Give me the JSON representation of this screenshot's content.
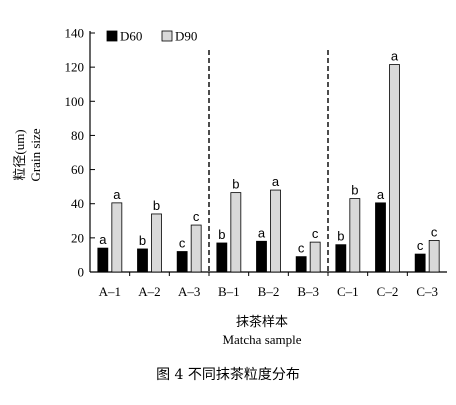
{
  "chart_data": {
    "type": "bar",
    "caption": "图 4  不同抹茶粒度分布",
    "ylabel_cn": "粒径(um)",
    "ylabel_en": "Grain size",
    "xlabel_cn": "抹茶样本",
    "xlabel_en": "Matcha sample",
    "ylim": [
      0,
      140
    ],
    "yticks": [
      0,
      20,
      40,
      60,
      80,
      100,
      120,
      140
    ],
    "categories": [
      "A-1",
      "A-2",
      "A-3",
      "B-1",
      "B-2",
      "B-3",
      "C-1",
      "C-2",
      "C-3"
    ],
    "group_dividers_after": [
      2,
      5
    ],
    "legend_position": "top-left",
    "grid": false,
    "series": [
      {
        "name": "D60",
        "color": "#000000",
        "values": [
          14,
          13.5,
          12,
          17,
          18,
          9,
          16,
          40.5,
          10.5
        ],
        "labels": [
          "a",
          "b",
          "c",
          "b",
          "a",
          "c",
          "b",
          "a",
          "c"
        ]
      },
      {
        "name": "D90",
        "color": "#d9d9d9",
        "values": [
          40.5,
          34,
          27.5,
          46.5,
          48,
          17.5,
          43,
          121.5,
          18.5
        ],
        "labels": [
          "a",
          "b",
          "c",
          "b",
          "a",
          "c",
          "b",
          "a",
          "c"
        ]
      }
    ]
  }
}
